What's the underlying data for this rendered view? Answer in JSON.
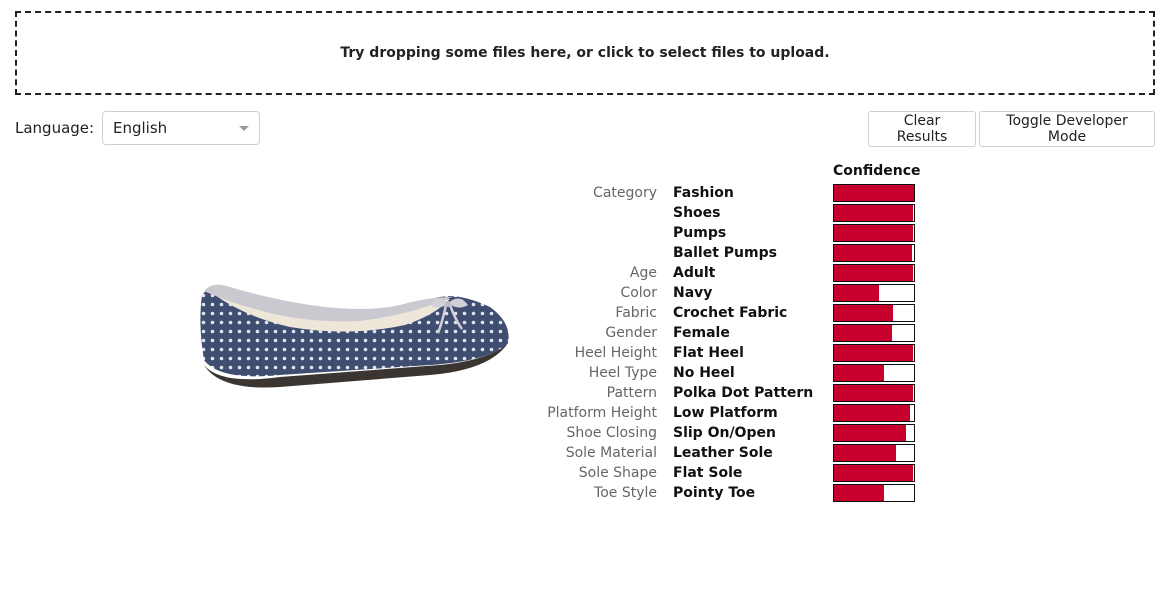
{
  "dropzone": {
    "text": "Try dropping some files here, or click to select files to upload."
  },
  "language": {
    "label": "Language:",
    "selected": "English"
  },
  "buttons": {
    "clear": "Clear Results",
    "developer": "Toggle Developer Mode"
  },
  "colors": {
    "bar_fill": "#c8002d",
    "shoe_fabric": "#3f4e70",
    "shoe_trim": "#c9c9cf"
  },
  "results": {
    "confidence_header": "Confidence",
    "rows": [
      {
        "category": "Category",
        "value": "Fashion",
        "confidence": 1.0
      },
      {
        "category": "",
        "value": "Shoes",
        "confidence": 0.99
      },
      {
        "category": "",
        "value": "Pumps",
        "confidence": 0.99
      },
      {
        "category": "",
        "value": "Ballet Pumps",
        "confidence": 0.98
      },
      {
        "category": "Age",
        "value": "Adult",
        "confidence": 0.99
      },
      {
        "category": "Color",
        "value": "Navy",
        "confidence": 0.56
      },
      {
        "category": "Fabric",
        "value": "Crochet Fabric",
        "confidence": 0.74
      },
      {
        "category": "Gender",
        "value": "Female",
        "confidence": 0.72
      },
      {
        "category": "Heel Height",
        "value": "Flat Heel",
        "confidence": 0.99
      },
      {
        "category": "Heel Type",
        "value": "No Heel",
        "confidence": 0.62
      },
      {
        "category": "Pattern",
        "value": "Polka Dot Pattern",
        "confidence": 0.99
      },
      {
        "category": "Platform Height",
        "value": "Low Platform",
        "confidence": 0.95
      },
      {
        "category": "Shoe Closing",
        "value": "Slip On/Open",
        "confidence": 0.9
      },
      {
        "category": "Sole Material",
        "value": "Leather Sole",
        "confidence": 0.77
      },
      {
        "category": "Sole Shape",
        "value": "Flat Sole",
        "confidence": 0.99
      },
      {
        "category": "Toe Style",
        "value": "Pointy Toe",
        "confidence": 0.63
      }
    ]
  }
}
